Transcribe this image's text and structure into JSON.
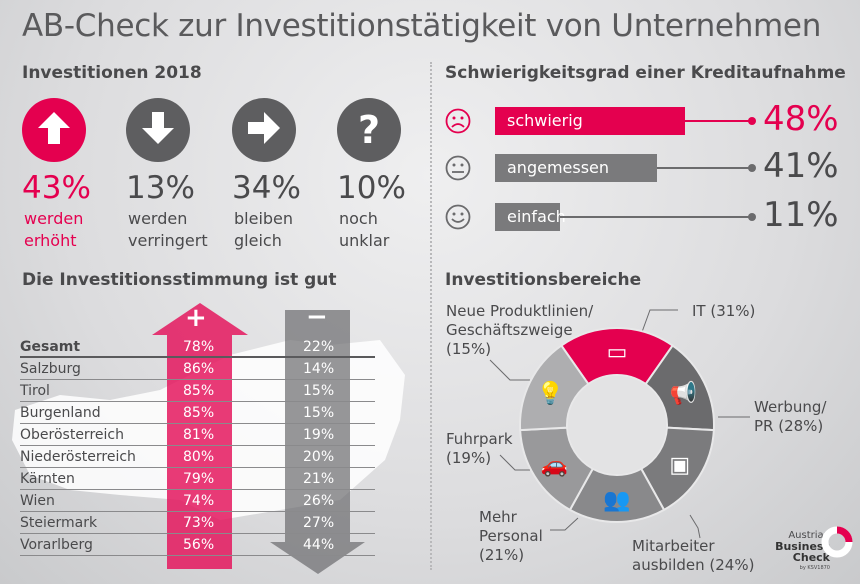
{
  "title": "AB-Check zur Investitionstätigkeit von Unternehmen",
  "colors": {
    "accent": "#e4004f",
    "gray_dark": "#6b6b6d",
    "gray": "#8a8a8c"
  },
  "investitionen": {
    "heading": "Investitionen 2018",
    "items": [
      {
        "icon": "arrow-up-icon",
        "pct": "43%",
        "l1": "werden",
        "l2": "erhöht",
        "value": 43
      },
      {
        "icon": "arrow-down-icon",
        "pct": "13%",
        "l1": "werden",
        "l2": "verringert",
        "value": 13
      },
      {
        "icon": "arrow-right-icon",
        "pct": "34%",
        "l1": "bleiben",
        "l2": "gleich",
        "value": 34
      },
      {
        "icon": "question-icon",
        "pct": "10%",
        "l1": "noch",
        "l2": "unklar",
        "value": 10
      }
    ]
  },
  "kredit": {
    "heading": "Schwierigkeitsgrad einer Kreditaufnahme",
    "items": [
      {
        "icon": "sad-face-icon",
        "label": "schwierig",
        "pct": "48%",
        "value": 48
      },
      {
        "icon": "neutral-face-icon",
        "label": "angemessen",
        "pct": "41%",
        "value": 41
      },
      {
        "icon": "happy-face-icon",
        "label": "einfach",
        "pct": "11%",
        "value": 11
      }
    ]
  },
  "stimmung": {
    "heading": "Die Investitionsstimmung ist gut",
    "plus": "+",
    "minus": "−",
    "rows": [
      {
        "name": "Gesamt",
        "plus": "78%",
        "minus": "22%"
      },
      {
        "name": "Salzburg",
        "plus": "86%",
        "minus": "14%"
      },
      {
        "name": "Tirol",
        "plus": "85%",
        "minus": "15%"
      },
      {
        "name": "Burgenland",
        "plus": "85%",
        "minus": "15%"
      },
      {
        "name": "Oberösterreich",
        "plus": "81%",
        "minus": "19%"
      },
      {
        "name": "Niederösterreich",
        "plus": "80%",
        "minus": "20%"
      },
      {
        "name": "Kärnten",
        "plus": "79%",
        "minus": "21%"
      },
      {
        "name": "Wien",
        "plus": "74%",
        "minus": "26%"
      },
      {
        "name": "Steiermark",
        "plus": "73%",
        "minus": "27%"
      },
      {
        "name": "Vorarlberg",
        "plus": "56%",
        "minus": "44%"
      }
    ]
  },
  "bereiche": {
    "heading": "Investitionsbereiche",
    "labels": {
      "it": "IT (31%)",
      "werbung1": "Werbung/",
      "werbung2": "PR (28%)",
      "mitarbeiter1": "Mitarbeiter",
      "mitarbeiter2": "ausbilden (24%)",
      "personal1": "Mehr",
      "personal2": "Personal",
      "personal3": "(21%)",
      "fuhrpark1": "Fuhrpark",
      "fuhrpark2": "(19%)",
      "neue1": "Neue Produktlinien/",
      "neue2": "Geschäftszweige",
      "neue3": "(15%)"
    }
  },
  "chart_data": {
    "type": "pie",
    "title": "Investitionsbereiche",
    "categories": [
      "IT",
      "Werbung/PR",
      "Mitarbeiter ausbilden",
      "Mehr Personal",
      "Fuhrpark",
      "Neue Produktlinien/Geschäftszweige"
    ],
    "values": [
      31,
      28,
      24,
      21,
      19,
      15
    ],
    "icons": [
      "devices-icon",
      "megaphone-icon",
      "training-icon",
      "people-icon",
      "car-icon",
      "lightbulb-icon"
    ],
    "colors": [
      "#e4004f",
      "#6b6b6d",
      "#7b7b7d",
      "#89898b",
      "#99999b",
      "#aeaeb0"
    ]
  },
  "logo": {
    "l1": "Austrian",
    "l2": "Business",
    "l3": "Check",
    "l4": "by KSV1870"
  }
}
